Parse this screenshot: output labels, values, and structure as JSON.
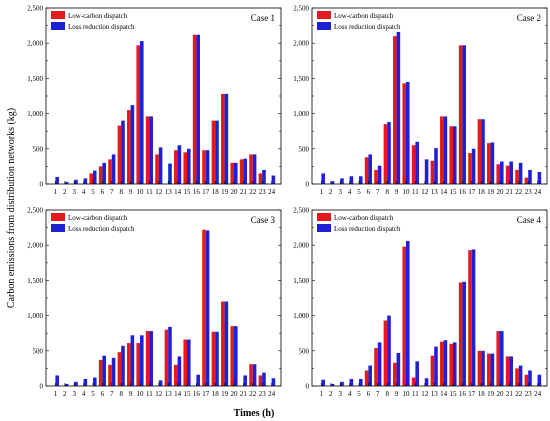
{
  "colors": {
    "low_carbon": "#e41a1c",
    "loss_reduction": "#1f1fd6"
  },
  "y_axis_title": "Carbon emissions from distribution networks (kg)",
  "x_axis_title": "Times (h)",
  "chart_data": [
    {
      "type": "bar",
      "title": "Case 1",
      "categories": [
        "1",
        "2",
        "3",
        "4",
        "5",
        "6",
        "7",
        "8",
        "9",
        "10",
        "11",
        "12",
        "13",
        "14",
        "15",
        "16",
        "17",
        "18",
        "19",
        "20",
        "21",
        "22",
        "23",
        "24"
      ],
      "ylim": [
        0,
        2500
      ],
      "yticks": [
        "0",
        "500",
        "1,000",
        "1,500",
        "2,000",
        "2,500"
      ],
      "legend": "top-left",
      "series": [
        {
          "name": "Low-carbon dispatch",
          "values": [
            0,
            0,
            0,
            0,
            150,
            250,
            350,
            830,
            1050,
            1970,
            960,
            420,
            0,
            480,
            450,
            2120,
            480,
            900,
            1280,
            300,
            350,
            420,
            150,
            0
          ]
        },
        {
          "name": "Loss reduction dispatch",
          "values": [
            100,
            30,
            60,
            80,
            190,
            300,
            420,
            900,
            1120,
            2030,
            960,
            520,
            290,
            550,
            500,
            2120,
            480,
            900,
            1280,
            300,
            360,
            420,
            200,
            120
          ]
        }
      ]
    },
    {
      "type": "bar",
      "title": "Case 2",
      "categories": [
        "1",
        "2",
        "3",
        "4",
        "5",
        "6",
        "7",
        "8",
        "9",
        "10",
        "11",
        "12",
        "13",
        "14",
        "15",
        "16",
        "17",
        "18",
        "19",
        "20",
        "21",
        "22",
        "23",
        "24"
      ],
      "ylim": [
        0,
        2500
      ],
      "yticks": [
        "0",
        "500",
        "1,000",
        "1,500",
        "2,000",
        "2,500"
      ],
      "legend": "top-left",
      "series": [
        {
          "name": "Low-carbon dispatch",
          "values": [
            0,
            0,
            0,
            0,
            0,
            380,
            200,
            850,
            2100,
            1430,
            550,
            0,
            330,
            960,
            820,
            1970,
            440,
            920,
            580,
            280,
            260,
            200,
            90,
            0
          ]
        },
        {
          "name": "Loss reduction dispatch",
          "values": [
            150,
            40,
            80,
            110,
            110,
            420,
            260,
            880,
            2160,
            1450,
            600,
            350,
            510,
            960,
            820,
            1970,
            500,
            920,
            590,
            320,
            320,
            300,
            200,
            170
          ]
        }
      ]
    },
    {
      "type": "bar",
      "title": "Case 3",
      "categories": [
        "1",
        "2",
        "3",
        "4",
        "5",
        "6",
        "7",
        "8",
        "9",
        "10",
        "11",
        "12",
        "13",
        "14",
        "15",
        "16",
        "17",
        "18",
        "19",
        "20",
        "21",
        "22",
        "23",
        "24"
      ],
      "ylim": [
        0,
        2500
      ],
      "yticks": [
        "0",
        "500",
        "1,000",
        "1,500",
        "2,000",
        "2,500"
      ],
      "legend": "top-left",
      "series": [
        {
          "name": "Low-carbon dispatch",
          "values": [
            0,
            0,
            0,
            0,
            0,
            370,
            300,
            480,
            610,
            610,
            780,
            0,
            800,
            300,
            660,
            0,
            2220,
            770,
            1200,
            850,
            0,
            310,
            150,
            0
          ]
        },
        {
          "name": "Loss reduction dispatch",
          "values": [
            150,
            30,
            60,
            100,
            120,
            430,
            400,
            570,
            720,
            720,
            780,
            80,
            840,
            420,
            660,
            160,
            2210,
            770,
            1200,
            850,
            150,
            310,
            190,
            110
          ]
        }
      ]
    },
    {
      "type": "bar",
      "title": "Case 4",
      "categories": [
        "1",
        "2",
        "3",
        "4",
        "5",
        "6",
        "7",
        "8",
        "9",
        "10",
        "11",
        "12",
        "13",
        "14",
        "15",
        "16",
        "17",
        "18",
        "19",
        "20",
        "21",
        "22",
        "23",
        "24"
      ],
      "ylim": [
        0,
        2500
      ],
      "yticks": [
        "0",
        "500",
        "1,000",
        "1,500",
        "2,000",
        "2,500"
      ],
      "legend": "top-left",
      "series": [
        {
          "name": "Low-carbon dispatch",
          "values": [
            0,
            0,
            0,
            0,
            0,
            220,
            540,
            930,
            330,
            1980,
            120,
            0,
            430,
            630,
            600,
            1470,
            1930,
            500,
            460,
            780,
            420,
            250,
            160,
            0
          ]
        },
        {
          "name": "Loss reduction dispatch",
          "values": [
            90,
            30,
            60,
            100,
            100,
            290,
            620,
            1000,
            470,
            2060,
            350,
            110,
            560,
            650,
            620,
            1480,
            1940,
            500,
            460,
            780,
            420,
            290,
            220,
            160
          ]
        }
      ]
    }
  ]
}
